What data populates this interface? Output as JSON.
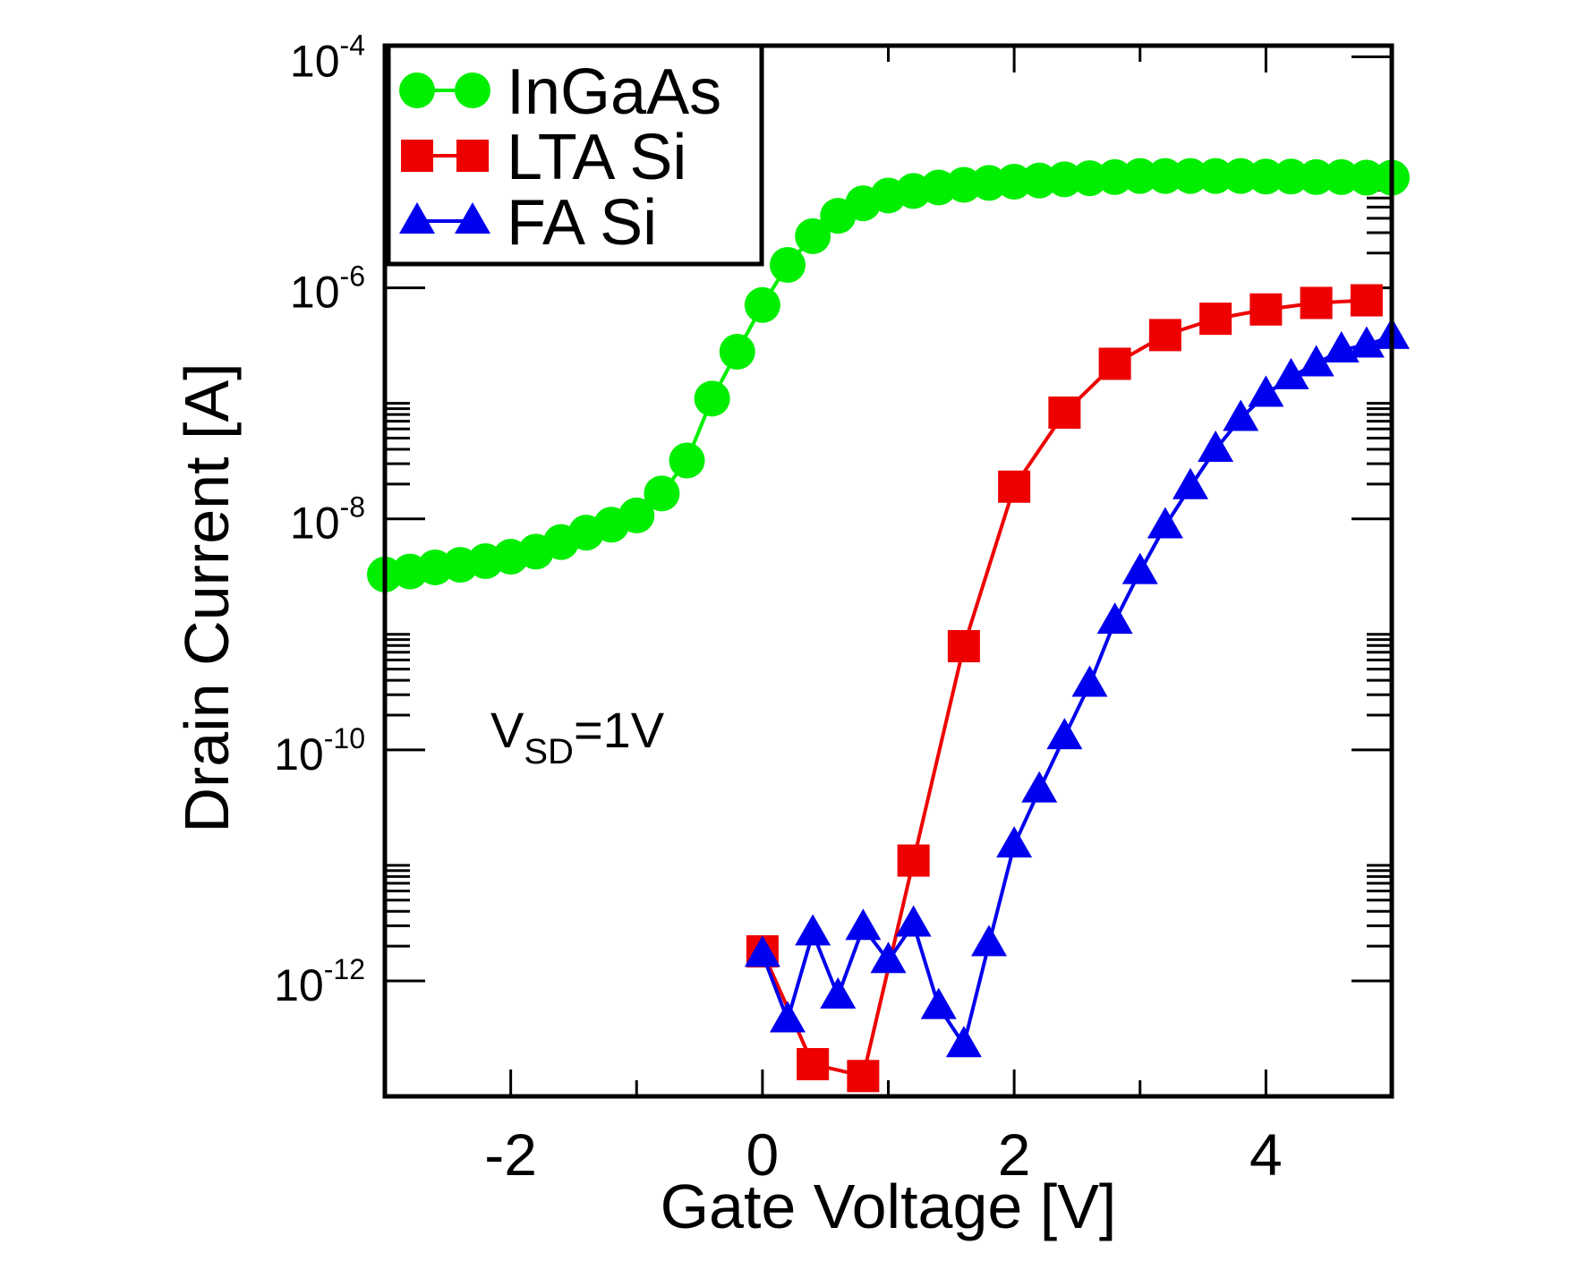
{
  "chart_data": {
    "type": "line",
    "xlabel": "Gate Voltage [V]",
    "ylabel": "Drain Current [A]",
    "xlim": [
      -3,
      5
    ],
    "ylim": [
      1e-13,
      0.000125
    ],
    "yscale": "log",
    "grid": false,
    "legend_position": "top-left",
    "x_ticks": [
      -2,
      0,
      2,
      4
    ],
    "x_tick_labels": [
      "-2",
      "0",
      "2",
      "4"
    ],
    "y_ticks": [
      0.0001,
      1e-06,
      1e-08,
      1e-10,
      1e-12
    ],
    "y_tick_labels": [
      {
        "base": "10",
        "exp": "-4"
      },
      {
        "base": "10",
        "exp": "-6"
      },
      {
        "base": "10",
        "exp": "-8"
      },
      {
        "base": "10",
        "exp": "-10"
      },
      {
        "base": "10",
        "exp": "-12"
      }
    ],
    "annotation": {
      "main": "V",
      "sub": "SD",
      "rest": "=1V"
    },
    "series": [
      {
        "name": "InGaAs",
        "color": "#00ee00",
        "marker": "circle",
        "x": [
          -3,
          -2.8,
          -2.6,
          -2.4,
          -2.2,
          -2,
          -1.8,
          -1.6,
          -1.4,
          -1.2,
          -1,
          -0.8,
          -0.6,
          -0.4,
          -0.2,
          0,
          0.2,
          0.4,
          0.6,
          0.8,
          1,
          1.2,
          1.4,
          1.6,
          1.8,
          2,
          2.2,
          2.4,
          2.6,
          2.8,
          3,
          3.2,
          3.4,
          3.6,
          3.8,
          4,
          4.2,
          4.4,
          4.6,
          4.8,
          5
        ],
        "y": [
          3.3e-09,
          3.5e-09,
          3.8e-09,
          4e-09,
          4.3e-09,
          4.7e-09,
          5.2e-09,
          6.3e-09,
          7.6e-09,
          8.9e-09,
          1.07e-08,
          1.66e-08,
          3.2e-08,
          1.1e-07,
          2.8e-07,
          7.1e-07,
          1.58e-06,
          2.8e-06,
          4.2e-06,
          5.4e-06,
          6.3e-06,
          6.9e-06,
          7.4e-06,
          7.8e-06,
          8.1e-06,
          8.3e-06,
          8.5e-06,
          8.7e-06,
          8.9e-06,
          9.1e-06,
          9.3e-06,
          9.3e-06,
          9.3e-06,
          9.3e-06,
          9.3e-06,
          9.2e-06,
          9.2e-06,
          9.1e-06,
          9.1e-06,
          9e-06,
          9e-06
        ]
      },
      {
        "name": "LTA Si",
        "color": "#ee0000",
        "marker": "square",
        "x": [
          0,
          0.4,
          0.8,
          1.2,
          1.6,
          2.0,
          2.4,
          2.8,
          3.2,
          3.6,
          4.0,
          4.4,
          4.8
        ],
        "y": [
          1.8e-12,
          1.9e-13,
          1.5e-13,
          1.1e-11,
          7.9e-10,
          1.9e-08,
          8.3e-08,
          2.2e-07,
          3.9e-07,
          5.4e-07,
          6.5e-07,
          7.4e-07,
          7.8e-07
        ]
      },
      {
        "name": "FA Si",
        "color": "#0000ee",
        "marker": "triangle",
        "x": [
          0,
          0.2,
          0.4,
          0.6,
          0.8,
          1.0,
          1.2,
          1.4,
          1.6,
          1.8,
          2.0,
          2.2,
          2.4,
          2.6,
          2.8,
          3.0,
          3.2,
          3.4,
          3.6,
          3.8,
          4.0,
          4.2,
          4.4,
          4.6,
          4.8,
          5.0
        ],
        "y": [
          1.7e-12,
          4.6e-13,
          2.6e-12,
          7.4e-13,
          2.9e-12,
          1.5e-12,
          3.1e-12,
          6e-13,
          2.8e-13,
          2.1e-12,
          1.5e-11,
          4.5e-11,
          1.3e-10,
          3.7e-10,
          1.3e-09,
          3.5e-09,
          8.7e-09,
          1.9e-08,
          4e-08,
          7.4e-08,
          1.2e-07,
          1.7e-07,
          2.2e-07,
          2.9e-07,
          3.2e-07,
          3.8e-07
        ]
      }
    ]
  }
}
